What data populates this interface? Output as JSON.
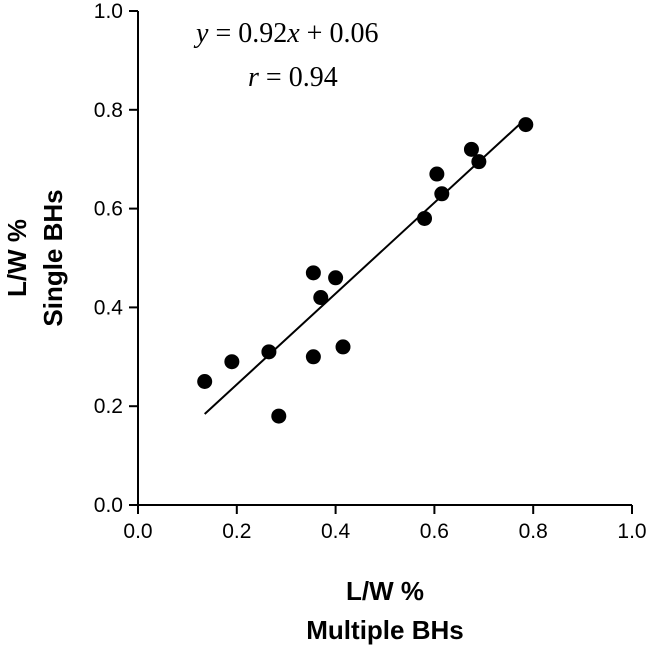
{
  "chart_data": {
    "type": "scatter",
    "xlabel": [
      "L/W %",
      "Multiple BHs"
    ],
    "ylabel": [
      "L/W  %",
      "Single BHs"
    ],
    "xlim": [
      0.0,
      1.0
    ],
    "ylim": [
      0.0,
      1.0
    ],
    "x_ticks": [
      "0.0",
      "0.2",
      "0.4",
      "0.6",
      "0.8",
      "1.0"
    ],
    "y_ticks": [
      "0.0",
      "0.2",
      "0.4",
      "0.6",
      "0.8",
      "1.0"
    ],
    "grid": false,
    "annotations": {
      "equation": {
        "y": "y",
        "eq1": " = 0.92",
        "x": "x",
        "eq2": " + 0.06"
      },
      "correlation": {
        "r": "r",
        "eq": " = 0.94"
      }
    },
    "regression_line": {
      "slope": 0.92,
      "intercept": 0.06,
      "x_range": [
        0.135,
        0.785
      ]
    },
    "series": [
      {
        "points": [
          [
            0.135,
            0.25
          ],
          [
            0.19,
            0.29
          ],
          [
            0.265,
            0.31
          ],
          [
            0.285,
            0.18
          ],
          [
            0.355,
            0.47
          ],
          [
            0.355,
            0.3
          ],
          [
            0.37,
            0.42
          ],
          [
            0.4,
            0.46
          ],
          [
            0.415,
            0.32
          ],
          [
            0.58,
            0.58
          ],
          [
            0.605,
            0.67
          ],
          [
            0.615,
            0.63
          ],
          [
            0.675,
            0.72
          ],
          [
            0.69,
            0.695
          ],
          [
            0.785,
            0.77
          ]
        ]
      }
    ]
  }
}
